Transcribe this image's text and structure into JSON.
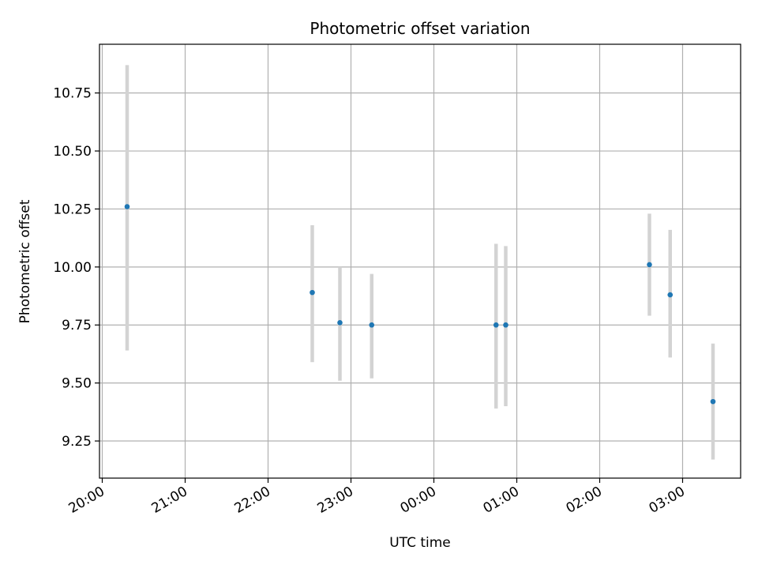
{
  "chart_data": {
    "type": "scatter",
    "title": "Photometric offset variation",
    "xlabel": "UTC time",
    "ylabel": "Photometric offset",
    "x_tick_labels": [
      "20:00",
      "21:00",
      "22:00",
      "23:00",
      "00:00",
      "01:00",
      "02:00",
      "03:00"
    ],
    "y_tick_values": [
      9.25,
      9.5,
      9.75,
      10.0,
      10.25,
      10.5,
      10.75
    ],
    "y_tick_labels": [
      "9.25",
      "9.50",
      "9.75",
      "10.00",
      "10.25",
      "10.50",
      "10.75"
    ],
    "xlim": [
      "19:58",
      "03:42"
    ],
    "ylim": [
      9.09,
      10.96
    ],
    "grid": true,
    "points": [
      {
        "x": "20:18",
        "y": 10.26,
        "yerr_low": 9.64,
        "yerr_high": 10.87
      },
      {
        "x": "22:32",
        "y": 9.89,
        "yerr_low": 9.59,
        "yerr_high": 10.18
      },
      {
        "x": "22:52",
        "y": 9.76,
        "yerr_low": 9.51,
        "yerr_high": 10.0
      },
      {
        "x": "23:15",
        "y": 9.75,
        "yerr_low": 9.52,
        "yerr_high": 9.97
      },
      {
        "x": "00:45",
        "y": 9.75,
        "yerr_low": 9.39,
        "yerr_high": 10.1
      },
      {
        "x": "00:52",
        "y": 9.75,
        "yerr_low": 9.4,
        "yerr_high": 10.09
      },
      {
        "x": "02:36",
        "y": 10.01,
        "yerr_low": 9.79,
        "yerr_high": 10.23
      },
      {
        "x": "02:51",
        "y": 9.88,
        "yerr_low": 9.61,
        "yerr_high": 10.16
      },
      {
        "x": "03:22",
        "y": 9.42,
        "yerr_low": 9.17,
        "yerr_high": 9.67
      }
    ],
    "colors": {
      "point": "#1f77b4",
      "errorbar": "#d3d3d3",
      "grid": "#b0b0b0",
      "axes": "#000000"
    }
  }
}
